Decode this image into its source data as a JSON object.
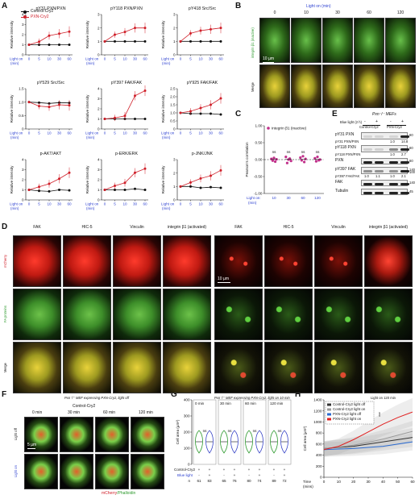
{
  "panel_letters": [
    "A",
    "B",
    "C",
    "D",
    "E",
    "F",
    "G",
    "H"
  ],
  "panelA": {
    "legend": [
      "Control-Cry2",
      "PXN-Cry2"
    ],
    "ylabel": "Relative intensity",
    "light_label": "Light on",
    "min_label": "(min)",
    "x_ticks": [
      "0",
      "5",
      "10",
      "30",
      "60"
    ],
    "colors": {
      "control": "#111111",
      "pxn": "#d0202a"
    }
  },
  "chart_data": [
    {
      "type": "line",
      "title": "pY31 PXN/PXN",
      "x": [
        0,
        5,
        10,
        30,
        60
      ],
      "ylim": [
        0,
        4
      ],
      "yticks": [
        "0",
        "1",
        "2",
        "3",
        "4"
      ],
      "series": [
        {
          "name": "Control-Cry2",
          "values": [
            1.0,
            1.0,
            1.0,
            1.0,
            1.0
          ]
        },
        {
          "name": "PXN-Cry2",
          "values": [
            1.0,
            1.3,
            1.9,
            2.1,
            2.3
          ]
        }
      ]
    },
    {
      "type": "line",
      "title": "pY118 PXN/PXN",
      "x": [
        0,
        5,
        10,
        30,
        60
      ],
      "ylim": [
        0,
        3
      ],
      "yticks": [
        "0",
        "1",
        "2",
        "3"
      ],
      "series": [
        {
          "name": "Control-Cry2",
          "values": [
            1.0,
            1.0,
            1.0,
            1.0,
            1.0
          ]
        },
        {
          "name": "PXN-Cry2",
          "values": [
            1.0,
            1.5,
            1.7,
            2.0,
            2.0
          ]
        }
      ]
    },
    {
      "type": "line",
      "title": "pY418 Src/Src",
      "x": [
        0,
        5,
        10,
        30,
        60
      ],
      "ylim": [
        0,
        3
      ],
      "yticks": [
        "0",
        "1",
        "2",
        "3"
      ],
      "series": [
        {
          "name": "Control-Cry2",
          "values": [
            1.0,
            1.0,
            1.0,
            1.0,
            1.0
          ]
        },
        {
          "name": "PXN-Cry2",
          "values": [
            1.0,
            1.6,
            1.8,
            1.9,
            2.0
          ]
        }
      ]
    },
    {
      "type": "line",
      "title": "pY529 Src/Src",
      "x": [
        0,
        5,
        10,
        30,
        60
      ],
      "ylim": [
        0,
        1.5
      ],
      "yticks": [
        "0",
        "0.5",
        "1.0",
        "1.5"
      ],
      "series": [
        {
          "name": "Control-Cry2",
          "values": [
            1.0,
            0.98,
            0.95,
            0.98,
            0.97
          ]
        },
        {
          "name": "PXN-Cry2",
          "values": [
            1.0,
            0.85,
            0.82,
            0.9,
            0.88
          ]
        }
      ]
    },
    {
      "type": "line",
      "title": "pY397 FAK/FAK",
      "x": [
        0,
        5,
        10,
        30,
        60
      ],
      "ylim": [
        0,
        4
      ],
      "yticks": [
        "0",
        "1",
        "2",
        "3",
        "4"
      ],
      "series": [
        {
          "name": "Control-Cry2",
          "values": [
            1.0,
            1.0,
            1.0,
            1.0,
            1.0
          ]
        },
        {
          "name": "PXN-Cry2",
          "values": [
            1.0,
            1.1,
            1.3,
            3.3,
            3.8
          ]
        }
      ]
    },
    {
      "type": "line",
      "title": "pY925 FAK/FAK",
      "x": [
        0,
        5,
        10,
        30,
        60
      ],
      "ylim": [
        0,
        2.5
      ],
      "yticks": [
        "0",
        "0.5",
        "1.0",
        "1.5",
        "2.0",
        "2.5"
      ],
      "series": [
        {
          "name": "Control-Cry2",
          "values": [
            1.0,
            0.95,
            0.95,
            0.95,
            0.9
          ]
        },
        {
          "name": "PXN-Cry2",
          "values": [
            1.0,
            1.1,
            1.3,
            1.5,
            1.9
          ]
        }
      ]
    },
    {
      "type": "line",
      "title": "p-AKT/AKT",
      "x": [
        0,
        5,
        10,
        30,
        60
      ],
      "ylim": [
        0,
        4
      ],
      "yticks": [
        "0",
        "1",
        "2",
        "3",
        "4"
      ],
      "series": [
        {
          "name": "Control-Cry2",
          "values": [
            1.0,
            0.9,
            0.85,
            1.0,
            0.95
          ]
        },
        {
          "name": "PXN-Cry2",
          "values": [
            1.0,
            1.3,
            1.6,
            2.1,
            2.7
          ]
        }
      ]
    },
    {
      "type": "line",
      "title": "p-ERK/ERK",
      "x": [
        0,
        5,
        10,
        30,
        60
      ],
      "ylim": [
        0,
        4
      ],
      "yticks": [
        "0",
        "1",
        "2",
        "3",
        "4"
      ],
      "series": [
        {
          "name": "Control-Cry2",
          "values": [
            1.0,
            1.0,
            1.0,
            1.1,
            1.0
          ]
        },
        {
          "name": "PXN-Cry2",
          "values": [
            1.0,
            1.4,
            1.7,
            2.7,
            3.1
          ]
        }
      ]
    },
    {
      "type": "line",
      "title": "p-JNK/JNK",
      "x": [
        0,
        5,
        10,
        30,
        60
      ],
      "ylim": [
        0,
        3
      ],
      "yticks": [
        "0",
        "1",
        "2",
        "3"
      ],
      "series": [
        {
          "name": "Control-Cry2",
          "values": [
            1.0,
            1.0,
            0.9,
            0.95,
            0.9
          ]
        },
        {
          "name": "PXN-Cry2",
          "values": [
            1.0,
            1.3,
            1.6,
            1.8,
            2.2
          ]
        }
      ]
    },
    {
      "type": "scatter",
      "title": "integrin β1 (inactive)",
      "ylabel": "Pearson's correlation",
      "x_ticks": [
        "10",
        "30",
        "60",
        "120"
      ],
      "ylim": [
        -1.0,
        1.0
      ],
      "yticks": [
        "-1.00",
        "-0.50",
        "0.00",
        "0.50",
        "1.00"
      ],
      "annotations": [
        "ns",
        "ns",
        "ns",
        "ns"
      ],
      "series": [
        {
          "name": "integrin β1 (inactive)",
          "points": [
            [
              10,
              0.02
            ],
            [
              10,
              -0.03
            ],
            [
              10,
              0.05
            ],
            [
              10,
              -0.06
            ],
            [
              10,
              0.01
            ],
            [
              30,
              0.08
            ],
            [
              30,
              -0.1
            ],
            [
              30,
              0.0
            ],
            [
              30,
              0.03
            ],
            [
              30,
              -0.04
            ],
            [
              60,
              0.06
            ],
            [
              60,
              -0.02
            ],
            [
              60,
              0.1
            ],
            [
              60,
              -0.07
            ],
            [
              60,
              0.02
            ],
            [
              120,
              0.04
            ],
            [
              120,
              -0.05
            ],
            [
              120,
              0.08
            ],
            [
              120,
              -0.02
            ],
            [
              120,
              0.0
            ]
          ]
        }
      ]
    },
    {
      "type": "line",
      "title": "",
      "ylabel": "Cell area (µm²)",
      "xlabel": "Time (mins)",
      "x": [
        0,
        10,
        20,
        30,
        40,
        50,
        60
      ],
      "ylim": [
        0,
        1400
      ],
      "yticks": [
        "0",
        "200",
        "400",
        "600",
        "800",
        "1000",
        "1200",
        "1400"
      ],
      "xticks": [
        "0",
        "10",
        "20",
        "30",
        "40",
        "50",
        "60"
      ],
      "legend_placement": "top-left",
      "series": [
        {
          "name": "Control-Cry2 light off",
          "values": [
            520,
            540,
            560,
            600,
            640,
            680,
            720
          ]
        },
        {
          "name": "Control-Cry2 light on",
          "values": [
            520,
            545,
            580,
            630,
            690,
            760,
            830
          ]
        },
        {
          "name": "PXN-Cry2 light off",
          "values": [
            500,
            510,
            520,
            540,
            560,
            600,
            640
          ]
        },
        {
          "name": "PXN-Cry2 light on",
          "values": [
            500,
            560,
            680,
            820,
            960,
            1080,
            1180
          ]
        }
      ],
      "annotation": "***"
    }
  ],
  "panelB": {
    "light_title": "Light on (min)",
    "times": [
      "0",
      "10",
      "30",
      "60",
      "120"
    ],
    "row1_label": "integrin β1 (inactive)",
    "row2_label": "Merge",
    "scale": "10 µm"
  },
  "panelC": {
    "legend": "integrin β1 (inactive)",
    "ylabel": "Pearson's correlation",
    "ns": "ns",
    "light_label": "Light on:",
    "min_label": "(min)"
  },
  "panelD": {
    "cols": [
      "FAK",
      "HIC-5",
      "Vinculin",
      "integrin β1 (activated)"
    ],
    "rows": [
      "mCherry",
      "FA proteins",
      "Merge"
    ],
    "caption_left": "Pxn⁻/⁻ MEF expressing PXN-Cry2, light off",
    "caption_mid": "Pxn⁻/⁻ MEF expressing PXN-Cry2, light on 10 min",
    "caption_right": "Light on 120 min",
    "scale": "10 µm"
  },
  "panelE": {
    "title": "Pxn⁻/⁻ MEFs",
    "blue_light": "Blue light (2 h)",
    "lanes": [
      "-",
      "+",
      "-",
      "+"
    ],
    "groups": [
      "Control-Cry2",
      "PXN-Cry2"
    ],
    "bands": [
      {
        "label": "pY31 PXN",
        "mw": "60",
        "ratio_label": "pY31 PXN/PXN",
        "ratios": [
          "1.0",
          "14.8"
        ]
      },
      {
        "label": "pY118 PXN",
        "mw": "60",
        "ratio_label": "pY118 PXN/PXN",
        "ratios": [
          "1.0",
          "2.7"
        ]
      },
      {
        "label": "PXN",
        "mw": "60",
        "ratio_label": "",
        "ratios": []
      },
      {
        "label": "pY397 FAK",
        "mw": "140",
        "ratio_label": "pY397 FAK/FAK",
        "ratios": [
          "1.0",
          "1.1",
          "1.0",
          "2.1"
        ]
      },
      {
        "label": "FAK",
        "mw": "140",
        "ratio_label": "",
        "ratios": []
      },
      {
        "label": "Tubulin",
        "mw": "45",
        "ratio_label": "",
        "ratios": []
      }
    ],
    "mw_extra": "100"
  },
  "panelF": {
    "title": "Control-Cry2",
    "times": [
      "0 min",
      "30 min",
      "60 min",
      "120 min"
    ],
    "rows": [
      "Light off",
      "Light on"
    ],
    "scale": "5 µm",
    "caption_a": "mCherry",
    "caption_b": "/Phalloidin"
  },
  "panelG": {
    "ylabel": "Cell area (µm²)",
    "times": [
      "0 min",
      "30 min",
      "60 min",
      "120 min"
    ],
    "ns": "ns",
    "row_control": "Control-Cry2",
    "row_light": "Blue light",
    "row_n": "n",
    "n_values": [
      "61",
      "83",
      "65",
      "76",
      "80",
      "74",
      "89",
      "72"
    ],
    "yticks": [
      "0",
      "100",
      "200",
      "300",
      "400"
    ],
    "signs_control": [
      "+",
      "+",
      "+",
      "+",
      "+",
      "+",
      "+",
      "+"
    ],
    "signs_light": [
      "-",
      "+",
      "-",
      "+",
      "-",
      "+",
      "-",
      "+"
    ]
  },
  "panelH": {
    "legend": [
      "Control-Cry2 light off",
      "Control-Cry2 light on",
      "PXN-Cry2 light off",
      "PXN-Cry2 light on"
    ],
    "colors": [
      "#333333",
      "#9a9a9a",
      "#2a6ad0",
      "#e02020"
    ],
    "sig": "***",
    "xlabel": "Time",
    "xunit": "(mins)"
  }
}
